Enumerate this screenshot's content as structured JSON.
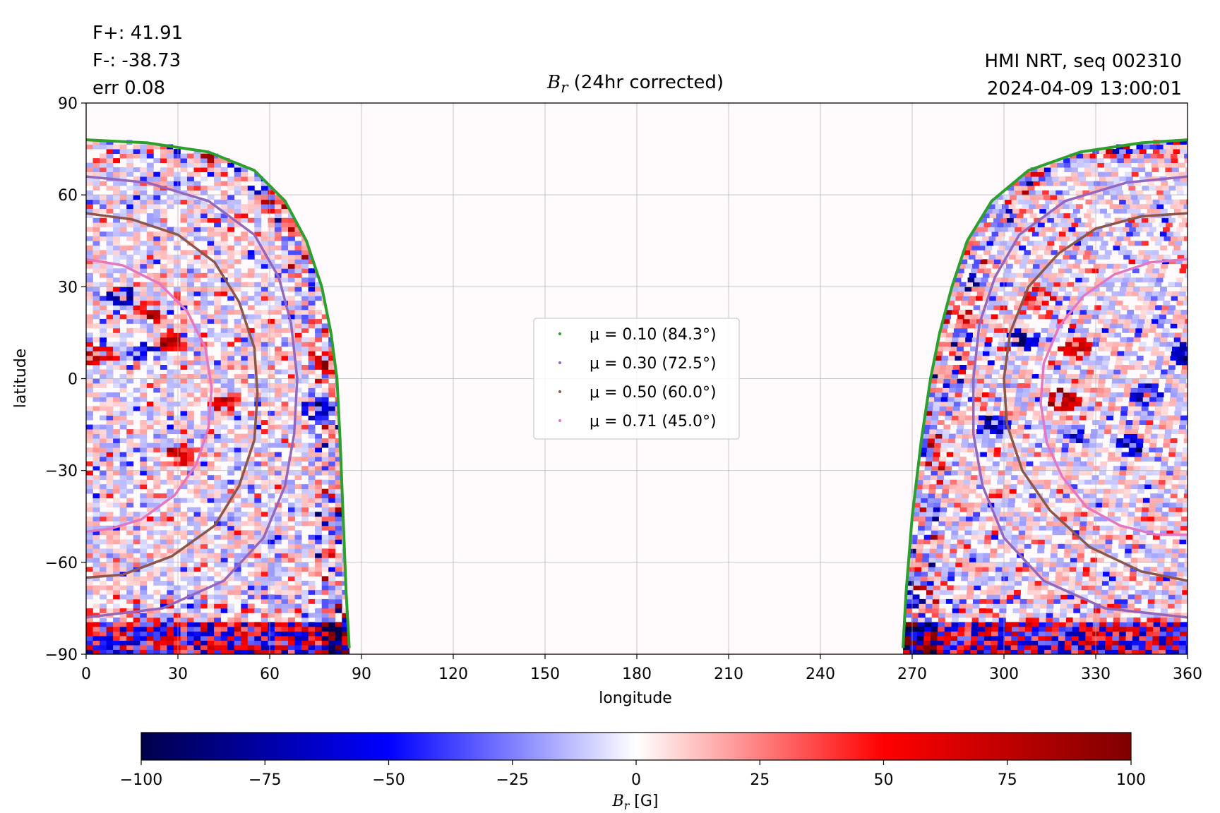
{
  "header": {
    "flux_pos": "F+: 41.91",
    "flux_neg": "F-: -38.73",
    "error": "err 0.08",
    "instrument": "HMI NRT, seq 002310",
    "timestamp": "2024-04-09 13:00:01",
    "title_symbol": "B",
    "title_subscript": "r",
    "title_rest": " (24hr corrected)"
  },
  "chart_data": {
    "type": "heatmap",
    "title": "B_r (24hr corrected)",
    "xlabel": "longitude",
    "ylabel": "latitude",
    "xlim": [
      0,
      360
    ],
    "ylim": [
      -90,
      90
    ],
    "xticks": [
      0,
      30,
      60,
      90,
      120,
      150,
      180,
      210,
      240,
      270,
      300,
      330,
      360
    ],
    "yticks": [
      -90,
      -60,
      -30,
      0,
      30,
      60,
      90
    ],
    "grid": true,
    "visible_disk_edge_longitudes": {
      "left_edge_max": 86,
      "right_edge_min": 267
    },
    "colorbar": {
      "label": "B_r [G]",
      "label_symbol": "B",
      "label_subscript": "r",
      "label_unit": " [G]",
      "range": [
        -100,
        100
      ],
      "ticks": [
        -100,
        -75,
        -50,
        -25,
        0,
        25,
        50,
        75,
        100
      ],
      "colormap": "seismic",
      "colors": [
        "#00004c",
        "#0000ff",
        "#ffffff",
        "#ff0000",
        "#7f0000"
      ]
    },
    "series": [
      {
        "name": "μ = 0.10 (84.3°)",
        "mu": 0.1,
        "angle_deg": 84.3,
        "color": "#2ca02c",
        "left_points": [
          [
            0,
            78
          ],
          [
            20,
            77
          ],
          [
            40,
            74
          ],
          [
            55,
            68
          ],
          [
            65,
            58
          ],
          [
            72,
            45
          ],
          [
            77,
            30
          ],
          [
            80,
            15
          ],
          [
            82,
            0
          ],
          [
            83,
            -20
          ],
          [
            84,
            -45
          ],
          [
            85,
            -70
          ],
          [
            86,
            -88
          ]
        ],
        "right_points": [
          [
            267,
            -88
          ],
          [
            268,
            -70
          ],
          [
            270,
            -45
          ],
          [
            273,
            -20
          ],
          [
            276,
            0
          ],
          [
            279,
            15
          ],
          [
            283,
            30
          ],
          [
            288,
            45
          ],
          [
            296,
            58
          ],
          [
            308,
            68
          ],
          [
            325,
            74
          ],
          [
            345,
            77
          ],
          [
            360,
            78
          ]
        ]
      },
      {
        "name": "μ = 0.30 (72.5°)",
        "mu": 0.3,
        "angle_deg": 72.5,
        "color": "#9467bd",
        "left_points": [
          [
            0,
            66
          ],
          [
            20,
            64
          ],
          [
            40,
            58
          ],
          [
            55,
            47
          ],
          [
            63,
            33
          ],
          [
            67,
            18
          ],
          [
            69,
            0
          ],
          [
            68,
            -18
          ],
          [
            65,
            -35
          ],
          [
            58,
            -52
          ],
          [
            45,
            -66
          ],
          [
            25,
            -75
          ],
          [
            0,
            -78
          ]
        ],
        "right_points": [
          [
            360,
            66
          ],
          [
            340,
            64
          ],
          [
            320,
            58
          ],
          [
            305,
            47
          ],
          [
            297,
            33
          ],
          [
            292,
            18
          ],
          [
            290,
            0
          ],
          [
            290,
            -18
          ],
          [
            293,
            -35
          ],
          [
            300,
            -52
          ],
          [
            313,
            -66
          ],
          [
            333,
            -75
          ],
          [
            360,
            -78
          ]
        ]
      },
      {
        "name": "μ = 0.50 (60.0°)",
        "mu": 0.5,
        "angle_deg": 60.0,
        "color": "#8c564b",
        "left_points": [
          [
            0,
            54
          ],
          [
            15,
            52
          ],
          [
            30,
            47
          ],
          [
            42,
            38
          ],
          [
            50,
            25
          ],
          [
            55,
            10
          ],
          [
            56,
            -5
          ],
          [
            55,
            -20
          ],
          [
            50,
            -35
          ],
          [
            42,
            -48
          ],
          [
            28,
            -58
          ],
          [
            12,
            -64
          ],
          [
            0,
            -65
          ]
        ],
        "right_points": [
          [
            360,
            54
          ],
          [
            345,
            53
          ],
          [
            330,
            49
          ],
          [
            318,
            41
          ],
          [
            308,
            30
          ],
          [
            302,
            15
          ],
          [
            300,
            0
          ],
          [
            301,
            -15
          ],
          [
            306,
            -30
          ],
          [
            315,
            -43
          ],
          [
            328,
            -55
          ],
          [
            345,
            -63
          ],
          [
            360,
            -66
          ]
        ]
      },
      {
        "name": "μ = 0.71 (45.0°)",
        "mu": 0.71,
        "angle_deg": 45.0,
        "color": "#e377c2",
        "left_points": [
          [
            0,
            39
          ],
          [
            12,
            37
          ],
          [
            24,
            31
          ],
          [
            33,
            22
          ],
          [
            39,
            10
          ],
          [
            41,
            -3
          ],
          [
            40,
            -16
          ],
          [
            36,
            -28
          ],
          [
            29,
            -38
          ],
          [
            18,
            -46
          ],
          [
            8,
            -49
          ],
          [
            0,
            -50
          ]
        ],
        "right_points": [
          [
            360,
            39
          ],
          [
            348,
            38
          ],
          [
            336,
            34
          ],
          [
            326,
            27
          ],
          [
            318,
            17
          ],
          [
            313,
            5
          ],
          [
            312,
            -8
          ],
          [
            314,
            -21
          ],
          [
            319,
            -32
          ],
          [
            327,
            -42
          ],
          [
            338,
            -48
          ],
          [
            350,
            -51
          ],
          [
            360,
            -51
          ]
        ]
      }
    ]
  }
}
